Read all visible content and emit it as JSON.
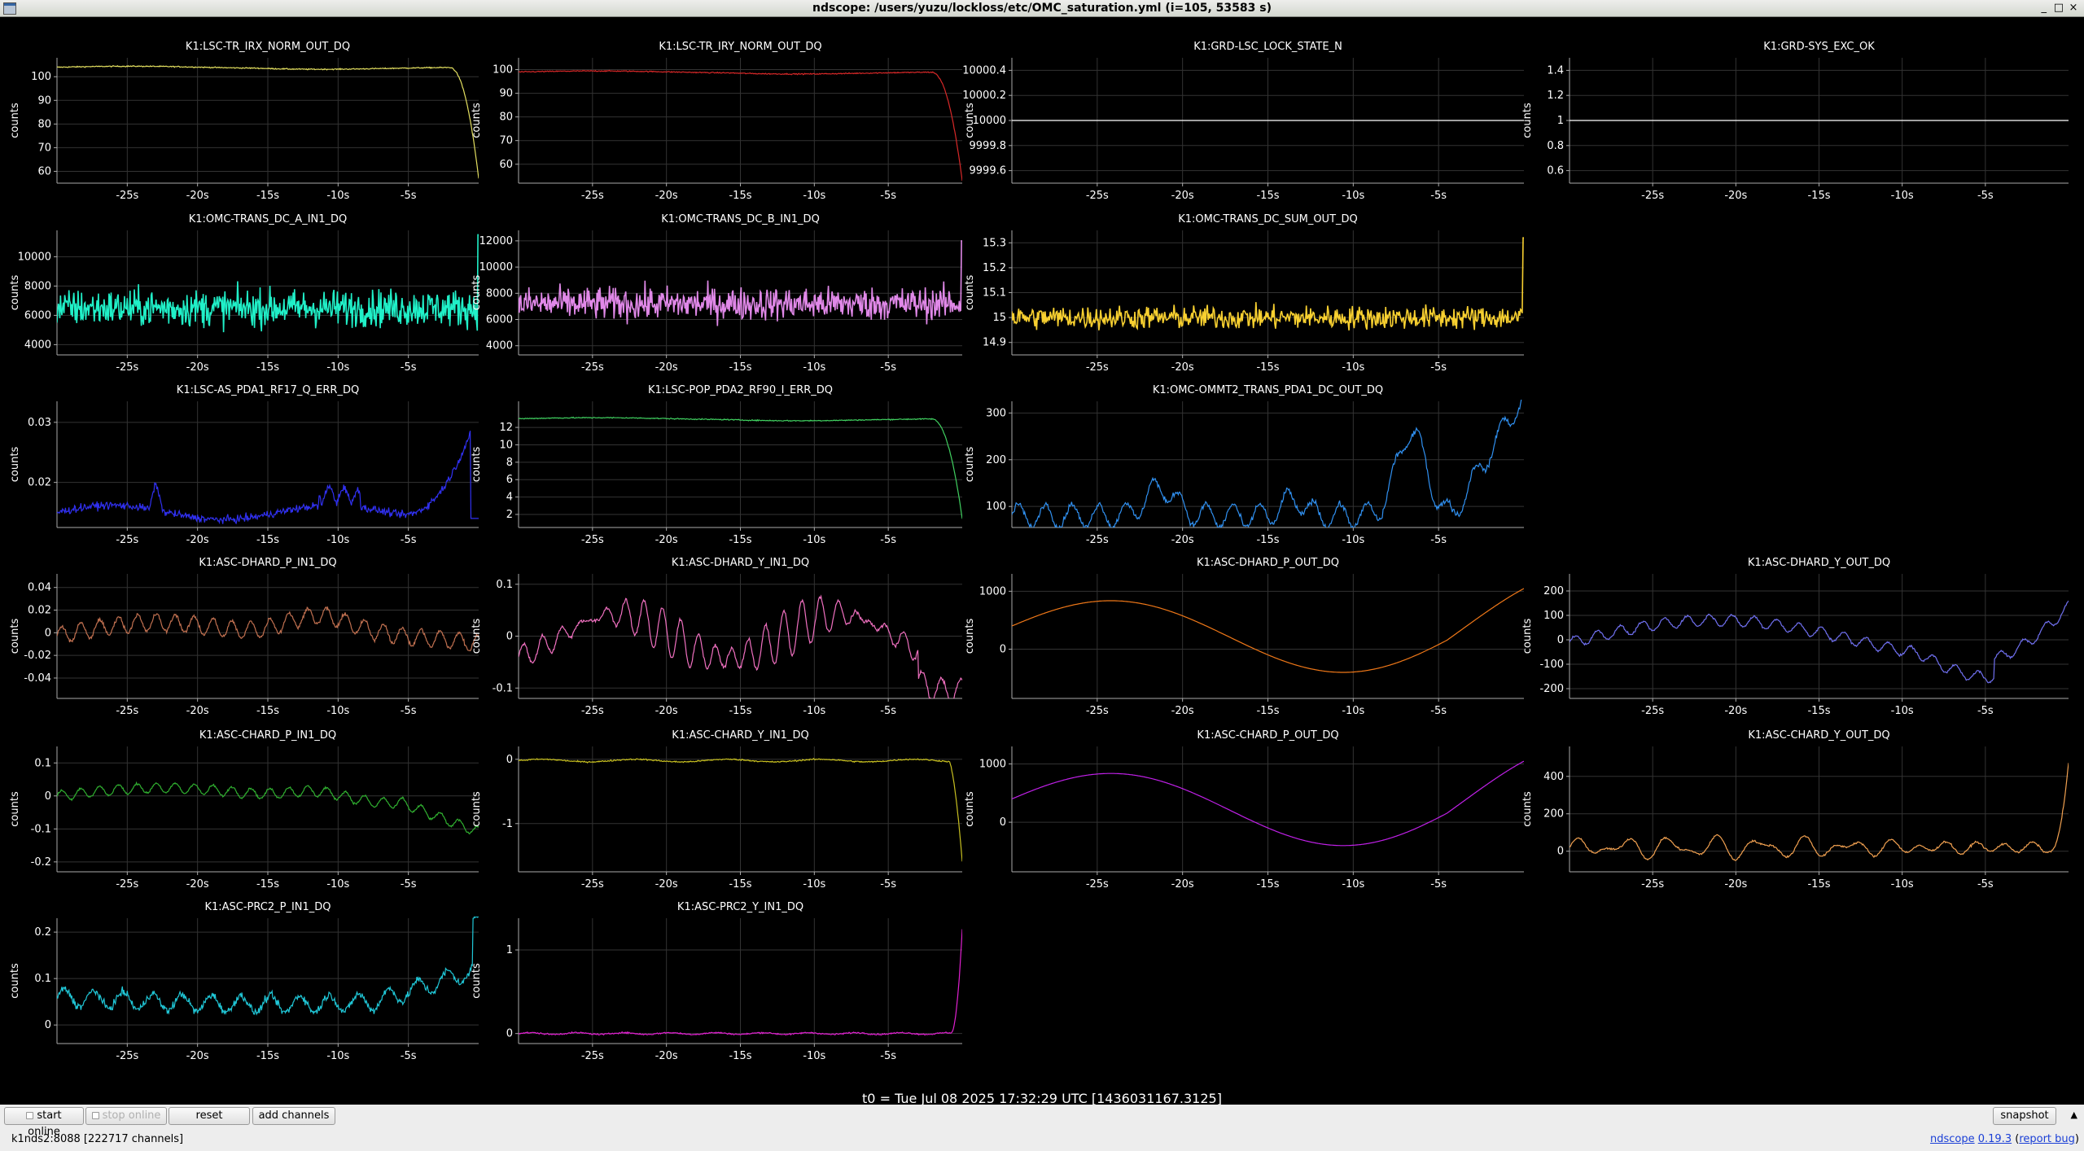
{
  "window": {
    "title": "ndscope: /users/yuzu/lockloss/etc/OMC_saturation.yml (i=105, 53583 s)",
    "controls": [
      "_",
      "□",
      "×"
    ]
  },
  "y_label": "counts",
  "time_ticks": [
    "-25s",
    "-20s",
    "-15s",
    "-10s",
    "-5s"
  ],
  "t0": "t0 = Tue Jul 08 2025 17:32:29 UTC [1436031167.3125]",
  "toolbar": {
    "start_online": "start online",
    "stop_online": "stop online",
    "reset": "reset",
    "add_channels": "add channels",
    "snapshot": "snapshot",
    "collapse": "▲"
  },
  "status": "k1nds2:8088  [222717 channels]",
  "version": {
    "name": "ndscope",
    "number": "0.19.3",
    "report": "report bug"
  },
  "chart_data": [
    {
      "title": "K1:LSC-TR_IRX_NORM_OUT_DQ",
      "type": "line",
      "color": "#e4e060",
      "ylabel": "counts",
      "yticks": [
        "100",
        "90",
        "80",
        "70",
        "60"
      ],
      "ylim": [
        55,
        108
      ],
      "xlim": [
        -30,
        0
      ],
      "trace": {
        "kind": "tr",
        "base": 104,
        "end": 57
      }
    },
    {
      "title": "K1:LSC-TR_IRY_NORM_OUT_DQ",
      "type": "line",
      "color": "#d82828",
      "ylabel": "counts",
      "yticks": [
        "100",
        "90",
        "80",
        "70",
        "60"
      ],
      "ylim": [
        52,
        105
      ],
      "xlim": [
        -30,
        0
      ],
      "trace": {
        "kind": "tr",
        "base": 99,
        "end": 53
      }
    },
    {
      "title": "K1:GRD-LSC_LOCK_STATE_N",
      "type": "line",
      "color": "#ffffff",
      "ylabel": "counts",
      "yticks": [
        "10000.4",
        "10000.2",
        "10000",
        "9999.8",
        "9999.6"
      ],
      "ylim": [
        9999.5,
        10000.5
      ],
      "xlim": [
        -30,
        0
      ],
      "trace": {
        "kind": "flat",
        "value": 10000
      }
    },
    {
      "title": "K1:GRD-SYS_EXC_OK",
      "type": "line",
      "color": "#ffffff",
      "ylabel": "counts",
      "yticks": [
        "1.4",
        "1.2",
        "1",
        "0.8",
        "0.6"
      ],
      "ylim": [
        0.5,
        1.5
      ],
      "xlim": [
        -30,
        0
      ],
      "trace": {
        "kind": "flat",
        "value": 1
      }
    },
    {
      "title": "K1:OMC-TRANS_DC_A_IN1_DQ",
      "type": "line",
      "color": "#20f0c8",
      "ylabel": "counts",
      "yticks": [
        "10000",
        "8000",
        "6000",
        "4000"
      ],
      "ylim": [
        3300,
        11800
      ],
      "xlim": [
        -30,
        0
      ],
      "trace": {
        "kind": "noise",
        "base": 6500,
        "amp": 1200,
        "end": 11500
      }
    },
    {
      "title": "K1:OMC-TRANS_DC_B_IN1_DQ",
      "type": "line",
      "color": "#e088e8",
      "ylabel": "counts",
      "yticks": [
        "12000",
        "10000",
        "8000",
        "6000",
        "4000"
      ],
      "ylim": [
        3300,
        12800
      ],
      "xlim": [
        -30,
        0
      ],
      "trace": {
        "kind": "noise",
        "base": 7200,
        "amp": 1200,
        "end": 12000
      }
    },
    {
      "title": "K1:OMC-TRANS_DC_SUM_OUT_DQ",
      "type": "line",
      "color": "#f8d030",
      "ylabel": "counts",
      "yticks": [
        "15.3",
        "15.2",
        "15.1",
        "15",
        "14.9"
      ],
      "ylim": [
        14.85,
        15.35
      ],
      "xlim": [
        -30,
        0
      ],
      "trace": {
        "kind": "noise",
        "base": 15,
        "amp": 0.045,
        "end": 15.32
      }
    },
    {
      "title": "K1:LSC-AS_PDA1_RF17_Q_ERR_DQ",
      "type": "line",
      "color": "#3030f0",
      "ylabel": "counts",
      "yticks": [
        "0.03",
        "0.02"
      ],
      "ylim": [
        0.0125,
        0.0335
      ],
      "xlim": [
        -30,
        0
      ],
      "trace": {
        "kind": "asq"
      }
    },
    {
      "title": "K1:LSC-POP_PDA2_RF90_I_ERR_DQ",
      "type": "line",
      "color": "#40d060",
      "ylabel": "counts",
      "yticks": [
        "12",
        "10",
        "8",
        "6",
        "4",
        "2"
      ],
      "ylim": [
        0.5,
        15
      ],
      "xlim": [
        -30,
        0
      ],
      "trace": {
        "kind": "tr",
        "base": 13,
        "end": 1.5
      }
    },
    {
      "title": "K1:OMC-OMMT2_TRANS_PDA1_DC_OUT_DQ",
      "type": "line",
      "color": "#3090f0",
      "ylabel": "counts",
      "yticks": [
        "300",
        "200",
        "100"
      ],
      "ylim": [
        55,
        325
      ],
      "xlim": [
        -30,
        0
      ],
      "trace": {
        "kind": "ommt"
      }
    },
    {
      "title": "K1:ASC-DHARD_P_IN1_DQ",
      "type": "line",
      "color": "#c07050",
      "ylabel": "counts",
      "yticks": [
        "0.04",
        "0.02",
        "0",
        "-0.02",
        "-0.04"
      ],
      "ylim": [
        -0.058,
        0.052
      ],
      "xlim": [
        -30,
        0
      ],
      "trace": {
        "kind": "wave",
        "amp": 0.03,
        "mean": 0,
        "shape": "dhard"
      }
    },
    {
      "title": "K1:ASC-DHARD_Y_IN1_DQ",
      "type": "line",
      "color": "#f070c0",
      "ylabel": "counts",
      "yticks": [
        "0.1",
        "0",
        "-0.1"
      ],
      "ylim": [
        -0.12,
        0.12
      ],
      "xlim": [
        -30,
        0
      ],
      "trace": {
        "kind": "wave",
        "amp": 0.07,
        "mean": 0,
        "shape": "dhardy"
      }
    },
    {
      "title": "K1:ASC-DHARD_P_OUT_DQ",
      "type": "line",
      "color": "#f07818",
      "ylabel": "counts",
      "yticks": [
        "1000",
        "0"
      ],
      "ylim": [
        -850,
        1300
      ],
      "xlim": [
        -30,
        0
      ],
      "trace": {
        "kind": "smooth",
        "shape": "pout"
      }
    },
    {
      "title": "K1:ASC-DHARD_Y_OUT_DQ",
      "type": "line",
      "color": "#7070f0",
      "ylabel": "counts",
      "yticks": [
        "200",
        "100",
        "0",
        "-100",
        "-200"
      ],
      "ylim": [
        -240,
        270
      ],
      "xlim": [
        -30,
        0
      ],
      "trace": {
        "kind": "wave",
        "amp": 90,
        "mean": 0,
        "shape": "yout"
      }
    },
    {
      "title": "K1:ASC-CHARD_P_IN1_DQ",
      "type": "line",
      "color": "#30b030",
      "ylabel": "counts",
      "yticks": [
        "0.1",
        "0",
        "-0.1",
        "-0.2"
      ],
      "ylim": [
        -0.23,
        0.15
      ],
      "xlim": [
        -30,
        0
      ],
      "trace": {
        "kind": "wave",
        "amp": 0.06,
        "mean": 0,
        "shape": "chard"
      }
    },
    {
      "title": "K1:ASC-CHARD_Y_IN1_DQ",
      "type": "line",
      "color": "#c8c020",
      "ylabel": "counts",
      "yticks": [
        "0",
        "-1"
      ],
      "ylim": [
        -1.75,
        0.2
      ],
      "xlim": [
        -30,
        0
      ],
      "trace": {
        "kind": "trneg"
      }
    },
    {
      "title": "K1:ASC-CHARD_P_OUT_DQ",
      "type": "line",
      "color": "#c020e8",
      "ylabel": "counts",
      "yticks": [
        "1000",
        "0"
      ],
      "ylim": [
        -850,
        1300
      ],
      "xlim": [
        -30,
        0
      ],
      "trace": {
        "kind": "smooth",
        "shape": "pout"
      }
    },
    {
      "title": "K1:ASC-CHARD_Y_OUT_DQ",
      "type": "line",
      "color": "#f0a050",
      "ylabel": "counts",
      "yticks": [
        "400",
        "200",
        "0"
      ],
      "ylim": [
        -110,
        560
      ],
      "xlim": [
        -30,
        0
      ],
      "trace": {
        "kind": "chardy"
      }
    },
    {
      "title": "K1:ASC-PRC2_P_IN1_DQ",
      "type": "line",
      "color": "#20c8d8",
      "ylabel": "counts",
      "yticks": [
        "0.2",
        "0.1",
        "0"
      ],
      "ylim": [
        -0.04,
        0.23
      ],
      "xlim": [
        -30,
        0
      ],
      "trace": {
        "kind": "prc2p"
      }
    },
    {
      "title": "K1:ASC-PRC2_Y_IN1_DQ",
      "type": "line",
      "color": "#e020d0",
      "ylabel": "counts",
      "yticks": [
        "1",
        "0"
      ],
      "ylim": [
        -0.12,
        1.38
      ],
      "xlim": [
        -30,
        0
      ],
      "trace": {
        "kind": "prc2y"
      }
    }
  ]
}
